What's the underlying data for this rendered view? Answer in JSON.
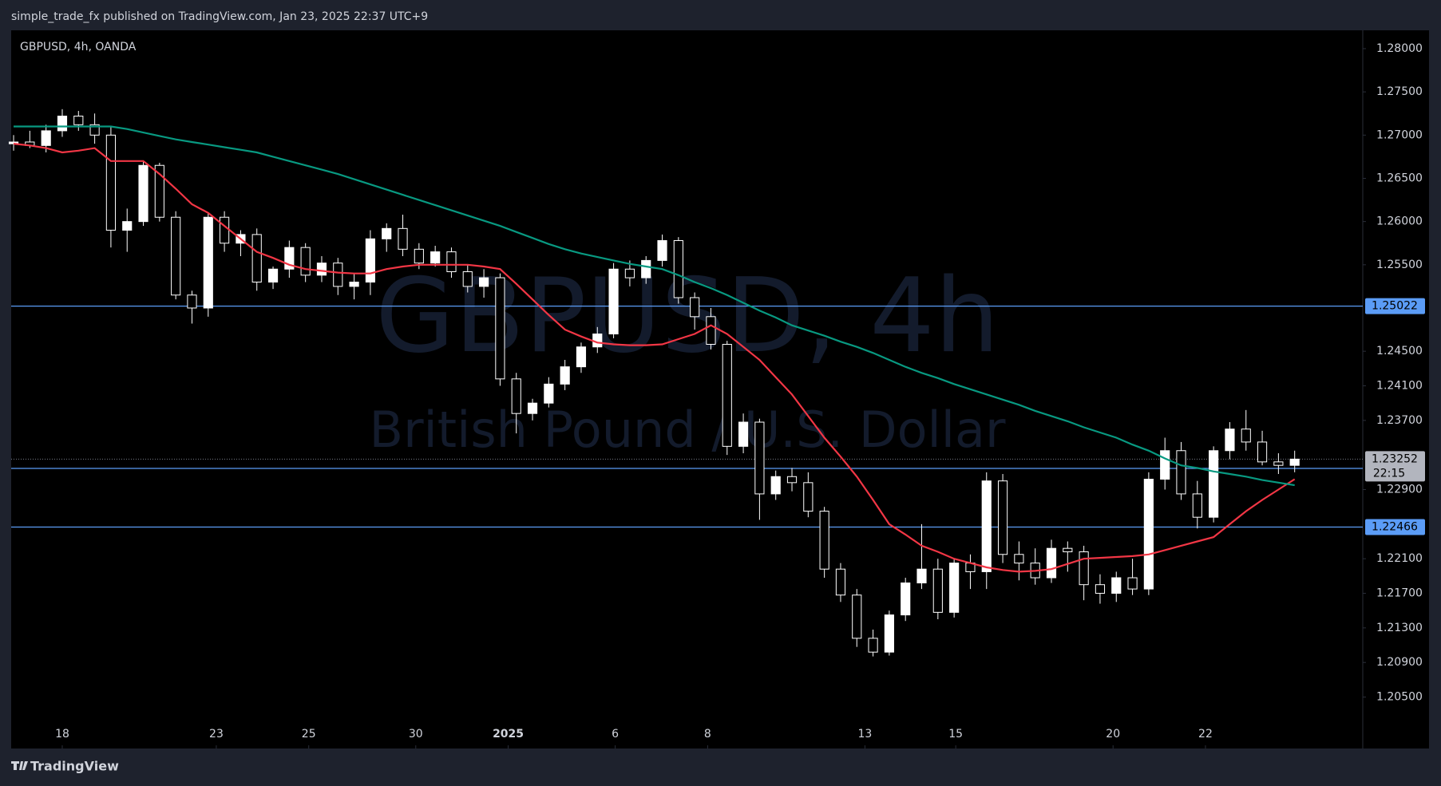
{
  "chart_data": {
    "type": "candlestick",
    "header": "simple_trade_fx published on TradingView.com, Jan 23, 2025 22:37 UTC+9",
    "symbol": "GBPUSD, 4h, OANDA",
    "watermark": "GBPUSD, 4h",
    "watermark_subtitle": "British Pound / U.S. Dollar",
    "footer": "TradingView",
    "candle_color": "#ffffff",
    "open": [
      1.269,
      1.2692,
      1.2688,
      1.2705,
      1.2722,
      1.2712,
      1.27,
      1.259,
      1.26,
      1.2665,
      1.2605,
      1.2515,
      1.25,
      1.2605,
      1.2575,
      1.2585,
      1.253,
      1.2545,
      1.257,
      1.2538,
      1.2552,
      1.2525,
      1.253,
      1.258,
      1.2592,
      1.2568,
      1.2552,
      1.2565,
      1.2542,
      1.2525,
      1.2535,
      1.2418,
      1.2378,
      1.239,
      1.2412,
      1.2432,
      1.2455,
      1.247,
      1.2545,
      1.2535,
      1.2555,
      1.2578,
      1.2512,
      1.249,
      1.2458,
      1.234,
      1.2368,
      1.2285,
      1.2305,
      1.2298,
      1.2265,
      1.2198,
      1.2168,
      1.2118,
      1.2102,
      1.2145,
      1.2182,
      1.2198,
      1.2148,
      1.2205,
      1.2195,
      1.23,
      1.2215,
      1.2205,
      1.2188,
      1.2222,
      1.2218,
      1.218,
      1.217,
      1.2188,
      1.2175,
      1.2302,
      1.2335,
      1.2285,
      1.2258,
      1.2335,
      1.236,
      1.2345,
      1.2322,
      1.2318
    ],
    "high": [
      1.27,
      1.2705,
      1.2712,
      1.273,
      1.2728,
      1.2725,
      1.271,
      1.2615,
      1.267,
      1.2668,
      1.2612,
      1.252,
      1.261,
      1.2612,
      1.259,
      1.2592,
      1.2548,
      1.2578,
      1.2575,
      1.256,
      1.2558,
      1.254,
      1.259,
      1.2598,
      1.2608,
      1.2575,
      1.2572,
      1.257,
      1.255,
      1.2545,
      1.254,
      1.2425,
      1.2395,
      1.242,
      1.244,
      1.246,
      1.2478,
      1.2552,
      1.2555,
      1.256,
      1.2585,
      1.2582,
      1.2518,
      1.25,
      1.2462,
      1.2378,
      1.2372,
      1.2312,
      1.2315,
      1.231,
      1.227,
      1.2205,
      1.2175,
      1.2128,
      1.215,
      1.2188,
      1.225,
      1.221,
      1.221,
      1.2215,
      1.231,
      1.2308,
      1.223,
      1.2222,
      1.2232,
      1.223,
      1.2225,
      1.2192,
      1.2195,
      1.221,
      1.231,
      1.235,
      1.2345,
      1.23,
      1.234,
      1.2368,
      1.2382,
      1.2358,
      1.2332,
      1.2335
    ],
    "low": [
      1.2682,
      1.2685,
      1.268,
      1.2698,
      1.2705,
      1.269,
      1.257,
      1.2565,
      1.2595,
      1.26,
      1.251,
      1.2482,
      1.249,
      1.2565,
      1.256,
      1.252,
      1.2522,
      1.2535,
      1.253,
      1.253,
      1.2515,
      1.251,
      1.2515,
      1.2565,
      1.256,
      1.2545,
      1.2548,
      1.2535,
      1.2518,
      1.2512,
      1.241,
      1.2355,
      1.237,
      1.2385,
      1.2405,
      1.2425,
      1.2448,
      1.2465,
      1.2525,
      1.2528,
      1.2548,
      1.2505,
      1.2475,
      1.2452,
      1.233,
      1.2332,
      1.2255,
      1.2278,
      1.2288,
      1.2258,
      1.2188,
      1.216,
      1.2108,
      1.2097,
      1.2098,
      1.2138,
      1.2175,
      1.214,
      1.2142,
      1.2175,
      1.2175,
      1.2205,
      1.2185,
      1.218,
      1.2182,
      1.2195,
      1.2162,
      1.2158,
      1.216,
      1.2168,
      1.2168,
      1.229,
      1.2278,
      1.2245,
      1.2252,
      1.2325,
      1.2335,
      1.2318,
      1.2308,
      1.231
    ],
    "close": [
      1.2692,
      1.2688,
      1.2705,
      1.2722,
      1.2712,
      1.27,
      1.259,
      1.26,
      1.2665,
      1.2605,
      1.2515,
      1.25,
      1.2605,
      1.2575,
      1.2585,
      1.253,
      1.2545,
      1.257,
      1.2538,
      1.2552,
      1.2525,
      1.253,
      1.258,
      1.2592,
      1.2568,
      1.2552,
      1.2565,
      1.2542,
      1.2525,
      1.2535,
      1.2418,
      1.2378,
      1.239,
      1.2412,
      1.2432,
      1.2455,
      1.247,
      1.2545,
      1.2535,
      1.2555,
      1.2578,
      1.2512,
      1.249,
      1.2458,
      1.234,
      1.2368,
      1.2285,
      1.2305,
      1.2298,
      1.2265,
      1.2198,
      1.2168,
      1.2118,
      1.2102,
      1.2145,
      1.2182,
      1.2198,
      1.2148,
      1.2205,
      1.2195,
      1.23,
      1.2215,
      1.2205,
      1.2188,
      1.2222,
      1.2218,
      1.218,
      1.217,
      1.2188,
      1.2175,
      1.2302,
      1.2335,
      1.2285,
      1.2258,
      1.2335,
      1.236,
      1.2345,
      1.2322,
      1.2318,
      1.23252
    ],
    "lines": [
      {
        "color": "#f23645",
        "values": [
          1.269,
          1.2688,
          1.2685,
          1.268,
          1.2682,
          1.2685,
          1.267,
          1.267,
          1.267,
          1.2655,
          1.2638,
          1.262,
          1.261,
          1.2595,
          1.258,
          1.2565,
          1.2558,
          1.255,
          1.2545,
          1.2543,
          1.2541,
          1.254,
          1.254,
          1.2545,
          1.2548,
          1.255,
          1.255,
          1.255,
          1.255,
          1.2548,
          1.2545,
          1.2528,
          1.251,
          1.2492,
          1.2475,
          1.2467,
          1.246,
          1.2458,
          1.2457,
          1.2457,
          1.2458,
          1.2464,
          1.247,
          1.248,
          1.247,
          1.2455,
          1.244,
          1.242,
          1.24,
          1.2375,
          1.235,
          1.2328,
          1.2305,
          1.2278,
          1.225,
          1.2238,
          1.2225,
          1.2218,
          1.221,
          1.2205,
          1.22,
          1.2197,
          1.2195,
          1.2196,
          1.2198,
          1.2204,
          1.221,
          1.2211,
          1.2212,
          1.2213,
          1.2215,
          1.222,
          1.2225,
          1.223,
          1.2235,
          1.225,
          1.2265,
          1.2278,
          1.229,
          1.2302
        ]
      },
      {
        "color": "#089981",
        "values": [
          1.271,
          1.271,
          1.271,
          1.271,
          1.271,
          1.271,
          1.271,
          1.2707,
          1.2703,
          1.2699,
          1.2695,
          1.2692,
          1.2689,
          1.2686,
          1.2683,
          1.268,
          1.2675,
          1.267,
          1.2665,
          1.266,
          1.2655,
          1.2649,
          1.2643,
          1.2637,
          1.2631,
          1.2625,
          1.2619,
          1.2613,
          1.2607,
          1.2601,
          1.2595,
          1.2588,
          1.2581,
          1.2574,
          1.2568,
          1.2563,
          1.2559,
          1.2555,
          1.2551,
          1.2548,
          1.2545,
          1.2538,
          1.253,
          1.2523,
          1.2515,
          1.2506,
          1.2497,
          1.2489,
          1.248,
          1.2474,
          1.2468,
          1.2461,
          1.2455,
          1.2448,
          1.244,
          1.2432,
          1.2425,
          1.2419,
          1.2412,
          1.2406,
          1.24,
          1.2394,
          1.2388,
          1.2381,
          1.2375,
          1.2369,
          1.2362,
          1.2356,
          1.235,
          1.2342,
          1.2335,
          1.2326,
          1.2318,
          1.2315,
          1.2311,
          1.2308,
          1.2305,
          1.2301,
          1.2298,
          1.2295
        ]
      }
    ],
    "levels": [
      {
        "value": 1.25022,
        "color": "#5b9cf6",
        "show_label": true
      },
      {
        "value": 1.23145,
        "color": "#5b9cf6",
        "show_label": false
      },
      {
        "value": 1.22466,
        "color": "#5b9cf6",
        "show_label": true
      }
    ],
    "last_price": 1.23252,
    "countdown": "22:15",
    "xlim": [
      -0.15,
      83.2
    ],
    "xticks": [
      {
        "value": 3,
        "label": "18"
      },
      {
        "value": 12.5,
        "label": "23"
      },
      {
        "value": 18.2,
        "label": "25"
      },
      {
        "value": 24.8,
        "label": "30"
      },
      {
        "value": 30.5,
        "label": "2025"
      },
      {
        "value": 37.1,
        "label": "6"
      },
      {
        "value": 42.8,
        "label": "8"
      },
      {
        "value": 52.5,
        "label": "13"
      },
      {
        "value": 58.1,
        "label": "15"
      },
      {
        "value": 67.8,
        "label": "20"
      },
      {
        "value": 73.5,
        "label": "22"
      }
    ],
    "ylim": [
      1.19905,
      1.28212
    ],
    "yticks": [
      {
        "value": 1.28,
        "label": "1.28000"
      },
      {
        "value": 1.275,
        "label": "1.27500"
      },
      {
        "value": 1.27,
        "label": "1.27000"
      },
      {
        "value": 1.265,
        "label": "1.26500"
      },
      {
        "value": 1.26,
        "label": "1.26000"
      },
      {
        "value": 1.255,
        "label": "1.25500"
      },
      {
        "value": 1.245,
        "label": "1.24500"
      },
      {
        "value": 1.241,
        "label": "1.24100"
      },
      {
        "value": 1.237,
        "label": "1.23700"
      },
      {
        "value": 1.229,
        "label": "1.22900"
      },
      {
        "value": 1.221,
        "label": "1.22100"
      },
      {
        "value": 1.217,
        "label": "1.21700"
      },
      {
        "value": 1.213,
        "label": "1.21300"
      },
      {
        "value": 1.209,
        "label": "1.20900"
      },
      {
        "value": 1.205,
        "label": "1.20500"
      }
    ]
  }
}
